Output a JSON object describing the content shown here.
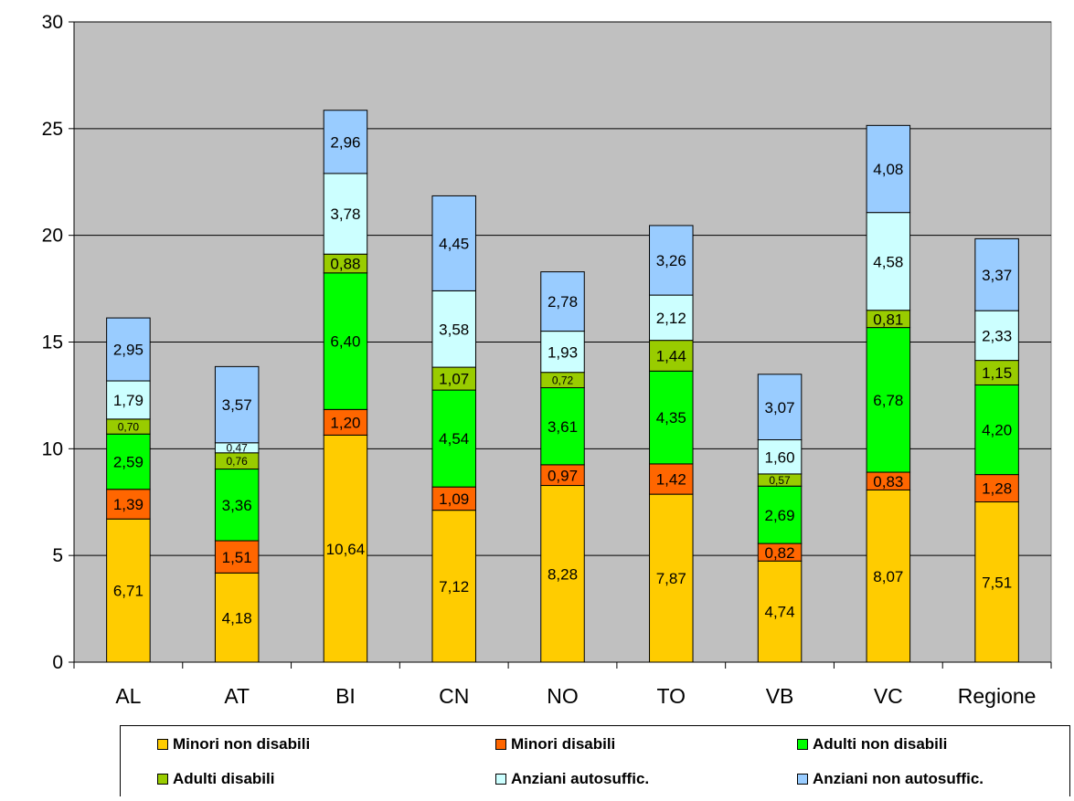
{
  "chart_data": {
    "type": "bar",
    "stacked": true,
    "categories": [
      "AL",
      "AT",
      "BI",
      "CN",
      "NO",
      "TO",
      "VB",
      "VC",
      "Regione"
    ],
    "ylim": [
      0,
      30
    ],
    "yticks": [
      0,
      5,
      10,
      15,
      20,
      25,
      30
    ],
    "grid": true,
    "background": "#c0c0c0",
    "legend_position": "bottom",
    "series": [
      {
        "name": "Minori non disabili",
        "color": "#ffcc00",
        "values": [
          6.71,
          4.18,
          10.64,
          7.12,
          8.28,
          7.87,
          4.74,
          8.07,
          7.51
        ],
        "labels": [
          "6,71",
          "4,18",
          "10,64",
          "7,12",
          "8,28",
          "7,87",
          "4,74",
          "8,07",
          "7,51"
        ]
      },
      {
        "name": "Minori disabili",
        "color": "#ff6600",
        "values": [
          1.39,
          1.51,
          1.2,
          1.09,
          0.97,
          1.42,
          0.82,
          0.83,
          1.28
        ],
        "labels": [
          "1,39",
          "1,51",
          "1,20",
          "1,09",
          "0,97",
          "1,42",
          "0,82",
          "0,83",
          "1,28"
        ]
      },
      {
        "name": "Adulti non disabili",
        "color": "#00ff00",
        "values": [
          2.59,
          3.36,
          6.4,
          4.54,
          3.61,
          4.35,
          2.69,
          6.78,
          4.2
        ],
        "labels": [
          "2,59",
          "3,36",
          "6,40",
          "4,54",
          "3,61",
          "4,35",
          "2,69",
          "6,78",
          "4,20"
        ]
      },
      {
        "name": "Adulti disabili",
        "color": "#99cc00",
        "values": [
          0.7,
          0.76,
          0.88,
          1.07,
          0.72,
          1.44,
          0.57,
          0.81,
          1.15
        ],
        "labels": [
          "0,70",
          "0,76",
          "0,88",
          "1,07",
          "0,72",
          "1,44",
          "0,57",
          "0,81",
          "1,15"
        ]
      },
      {
        "name": "Anziani autosuffic.",
        "color": "#ccffff",
        "values": [
          1.79,
          0.47,
          3.78,
          3.58,
          1.93,
          2.12,
          1.6,
          4.58,
          2.33
        ],
        "labels": [
          "1,79",
          "0,47",
          "3,78",
          "3,58",
          "1,93",
          "2,12",
          "1,60",
          "4,58",
          "2,33"
        ]
      },
      {
        "name": "Anziani non autosuffic.",
        "color": "#99ccff",
        "values": [
          2.95,
          3.57,
          2.96,
          4.45,
          2.78,
          3.26,
          3.07,
          4.08,
          3.37
        ],
        "labels": [
          "2,95",
          "3,57",
          "2,96",
          "4,45",
          "2,78",
          "3,26",
          "3,07",
          "4,08",
          "3,37"
        ]
      }
    ]
  }
}
